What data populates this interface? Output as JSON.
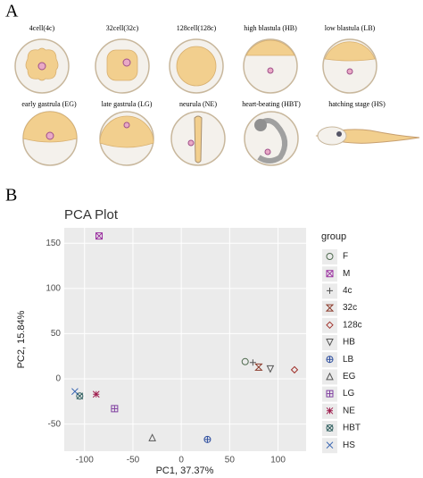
{
  "panel_a": {
    "label": "A",
    "stages": [
      "4cell(4c)",
      "32cell(32c)",
      "128cell(128c)",
      "high blastula (HB)",
      "low blastula (LB)",
      "early gastrula (EG)",
      "late gastrula (LG)",
      "neurula (NE)",
      "heart-beating (HBT)",
      "hatching stage (HS)"
    ]
  },
  "panel_b_label": "B",
  "chart_data": {
    "type": "scatter",
    "title": "PCA Plot",
    "x_label": "PC1, 37.37%",
    "y_label": "PC2, 15.84%",
    "legend_title": "group",
    "legend": "right",
    "grid": true,
    "xlim": [
      -121,
      129
    ],
    "ylim": [
      -80,
      167
    ],
    "xticks": [
      -100,
      -50,
      0,
      50,
      100
    ],
    "yticks": [
      -50,
      0,
      50,
      100,
      150
    ],
    "series": [
      {
        "name": "F",
        "color": "#4f6b4f",
        "marker": "circle",
        "x": [
          66
        ],
        "y": [
          19
        ]
      },
      {
        "name": "M",
        "color": "#9b30a0",
        "marker": "square-x",
        "x": [
          -85
        ],
        "y": [
          158
        ]
      },
      {
        "name": "4c",
        "color": "#555555",
        "marker": "plus",
        "x": [
          74
        ],
        "y": [
          18
        ]
      },
      {
        "name": "32c",
        "color": "#8b3a2a",
        "marker": "hourglass",
        "x": [
          80
        ],
        "y": [
          13
        ]
      },
      {
        "name": "128c",
        "color": "#a0302a",
        "marker": "diamond",
        "x": [
          117
        ],
        "y": [
          10
        ]
      },
      {
        "name": "HB",
        "color": "#555555",
        "marker": "triangle-down",
        "x": [
          92
        ],
        "y": [
          11
        ]
      },
      {
        "name": "LB",
        "color": "#3050a0",
        "marker": "circle-plus",
        "x": [
          27
        ],
        "y": [
          -67
        ]
      },
      {
        "name": "EG",
        "color": "#555555",
        "marker": "triangle-up",
        "x": [
          -30
        ],
        "y": [
          -65
        ]
      },
      {
        "name": "LG",
        "color": "#8040a0",
        "marker": "square-plus",
        "x": [
          -69
        ],
        "y": [
          -33
        ]
      },
      {
        "name": "NE",
        "color": "#a02050",
        "marker": "asterisk",
        "x": [
          -88
        ],
        "y": [
          -17
        ]
      },
      {
        "name": "HBT",
        "color": "#2f5f5f",
        "marker": "circle-x",
        "x": [
          -105
        ],
        "y": [
          -19
        ]
      },
      {
        "name": "HS",
        "color": "#3060b0",
        "marker": "x",
        "x": [
          -110
        ],
        "y": [
          -14
        ]
      }
    ]
  }
}
